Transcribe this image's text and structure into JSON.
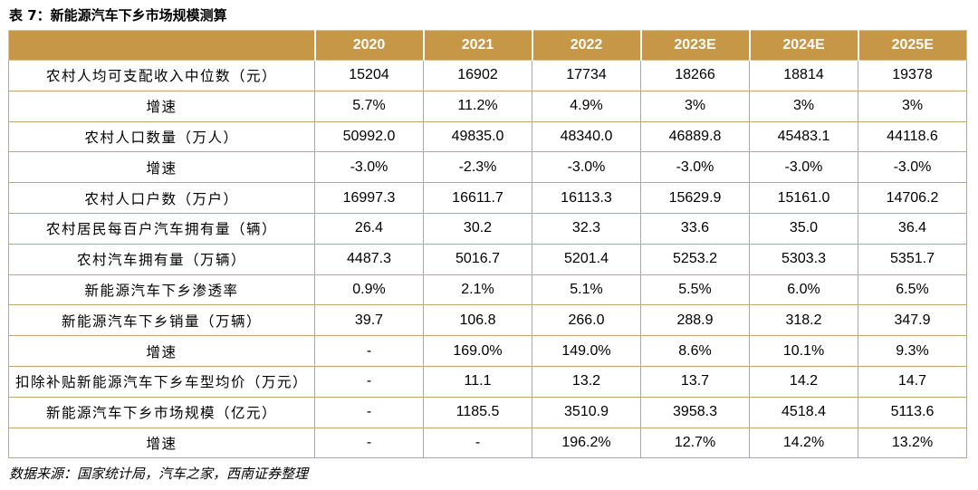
{
  "title": "表 7：新能源汽车下乡市场规模测算",
  "table": {
    "columns": [
      "",
      "2020",
      "2021",
      "2022",
      "2023E",
      "2024E",
      "2025E"
    ],
    "rows": [
      {
        "label": "农村人均可支配收入中位数（元）",
        "values": [
          "15204",
          "16902",
          "17734",
          "18266",
          "18814",
          "19378"
        ]
      },
      {
        "label": "增速",
        "values": [
          "5.7%",
          "11.2%",
          "4.9%",
          "3%",
          "3%",
          "3%"
        ]
      },
      {
        "label": "农村人口数量（万人）",
        "values": [
          "50992.0",
          "49835.0",
          "48340.0",
          "46889.8",
          "45483.1",
          "44118.6"
        ]
      },
      {
        "label": "增速",
        "values": [
          "-3.0%",
          "-2.3%",
          "-3.0%",
          "-3.0%",
          "-3.0%",
          "-3.0%"
        ]
      },
      {
        "label": "农村人口户数（万户）",
        "values": [
          "16997.3",
          "16611.7",
          "16113.3",
          "15629.9",
          "15161.0",
          "14706.2"
        ]
      },
      {
        "label": "农村居民每百户汽车拥有量（辆）",
        "values": [
          "26.4",
          "30.2",
          "32.3",
          "33.6",
          "35.0",
          "36.4"
        ]
      },
      {
        "label": "农村汽车拥有量（万辆）",
        "values": [
          "4487.3",
          "5016.7",
          "5201.4",
          "5253.2",
          "5303.3",
          "5351.7"
        ]
      },
      {
        "label": "新能源汽车下乡渗透率",
        "values": [
          "0.9%",
          "2.1%",
          "5.1%",
          "5.5%",
          "6.0%",
          "6.5%"
        ]
      },
      {
        "label": "新能源汽车下乡销量（万辆）",
        "values": [
          "39.7",
          "106.8",
          "266.0",
          "288.9",
          "318.2",
          "347.9"
        ]
      },
      {
        "label": "增速",
        "values": [
          "-",
          "169.0%",
          "149.0%",
          "8.6%",
          "10.1%",
          "9.3%"
        ]
      },
      {
        "label": "扣除补贴新能源汽车下乡车型均价（万元）",
        "values": [
          "-",
          "11.1",
          "13.2",
          "13.7",
          "14.2",
          "14.7"
        ]
      },
      {
        "label": "新能源汽车下乡市场规模（亿元）",
        "values": [
          "-",
          "1185.5",
          "3510.9",
          "3958.3",
          "4518.4",
          "5113.6"
        ]
      },
      {
        "label": "增速",
        "values": [
          "-",
          "-",
          "196.2%",
          "12.7%",
          "14.2%",
          "13.2%"
        ]
      }
    ]
  },
  "source": "数据来源：国家统计局，汽车之家，西南证券整理",
  "colors": {
    "header_background": "#c69746",
    "header_text": "#ffffff",
    "grid_line": "#c8a76d"
  }
}
